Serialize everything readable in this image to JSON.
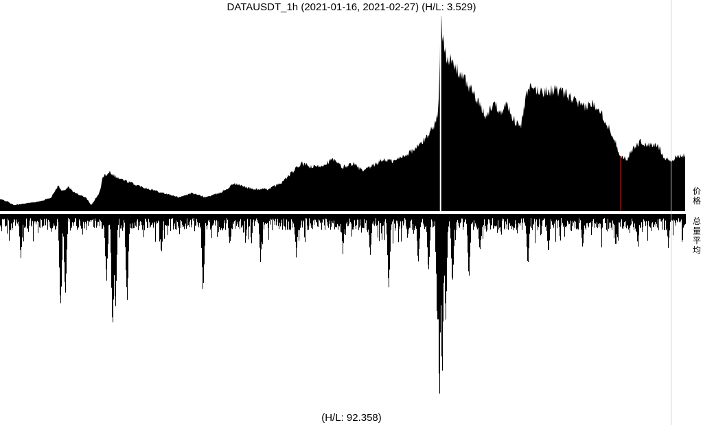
{
  "chart": {
    "title": "DATAUSDT_1h (2021-01-16, 2021-02-27) (H/L: 3.529)",
    "volume_ratio_label": "(H/L: 92.358)",
    "price_panel_label": "价格",
    "volume_panel_label": "总量平均"
  },
  "chart_data": [
    {
      "type": "area",
      "panel": "price",
      "symbol": "DATAUSDT",
      "interval": "1h",
      "date_range": [
        "2021-01-16",
        "2021-02-27"
      ],
      "high_low_ratio": 3.529,
      "fill_color": "#000000",
      "highlight_color": "#cc0000",
      "x_range": [
        0,
        1
      ],
      "y_range": [
        0,
        1
      ],
      "profile": [
        [
          0.0,
          0.06
        ],
        [
          0.01,
          0.05
        ],
        [
          0.02,
          0.03
        ],
        [
          0.04,
          0.04
        ],
        [
          0.06,
          0.05
        ],
        [
          0.075,
          0.07
        ],
        [
          0.085,
          0.13
        ],
        [
          0.09,
          0.1
        ],
        [
          0.1,
          0.12
        ],
        [
          0.11,
          0.09
        ],
        [
          0.125,
          0.07
        ],
        [
          0.133,
          0.03
        ],
        [
          0.145,
          0.09
        ],
        [
          0.15,
          0.17
        ],
        [
          0.16,
          0.2
        ],
        [
          0.17,
          0.17
        ],
        [
          0.185,
          0.15
        ],
        [
          0.2,
          0.13
        ],
        [
          0.22,
          0.11
        ],
        [
          0.24,
          0.09
        ],
        [
          0.26,
          0.07
        ],
        [
          0.28,
          0.09
        ],
        [
          0.3,
          0.07
        ],
        [
          0.32,
          0.09
        ],
        [
          0.335,
          0.12
        ],
        [
          0.34,
          0.14
        ],
        [
          0.35,
          0.13
        ],
        [
          0.37,
          0.11
        ],
        [
          0.39,
          0.11
        ],
        [
          0.41,
          0.14
        ],
        [
          0.425,
          0.19
        ],
        [
          0.44,
          0.24
        ],
        [
          0.455,
          0.22
        ],
        [
          0.47,
          0.23
        ],
        [
          0.485,
          0.26
        ],
        [
          0.5,
          0.22
        ],
        [
          0.515,
          0.24
        ],
        [
          0.53,
          0.2
        ],
        [
          0.545,
          0.23
        ],
        [
          0.56,
          0.26
        ],
        [
          0.575,
          0.25
        ],
        [
          0.59,
          0.28
        ],
        [
          0.605,
          0.31
        ],
        [
          0.62,
          0.36
        ],
        [
          0.635,
          0.44
        ],
        [
          0.64,
          0.5
        ],
        [
          0.643,
          0.97
        ],
        [
          0.646,
          0.9
        ],
        [
          0.652,
          0.78
        ],
        [
          0.66,
          0.74
        ],
        [
          0.67,
          0.7
        ],
        [
          0.68,
          0.65
        ],
        [
          0.69,
          0.6
        ],
        [
          0.7,
          0.53
        ],
        [
          0.71,
          0.47
        ],
        [
          0.72,
          0.55
        ],
        [
          0.73,
          0.5
        ],
        [
          0.74,
          0.54
        ],
        [
          0.75,
          0.46
        ],
        [
          0.76,
          0.42
        ],
        [
          0.768,
          0.58
        ],
        [
          0.775,
          0.62
        ],
        [
          0.79,
          0.6
        ],
        [
          0.81,
          0.61
        ],
        [
          0.83,
          0.58
        ],
        [
          0.84,
          0.55
        ],
        [
          0.85,
          0.52
        ],
        [
          0.865,
          0.54
        ],
        [
          0.875,
          0.52
        ],
        [
          0.885,
          0.44
        ],
        [
          0.895,
          0.38
        ],
        [
          0.905,
          0.28
        ],
        [
          0.915,
          0.26
        ],
        [
          0.925,
          0.32
        ],
        [
          0.935,
          0.35
        ],
        [
          0.945,
          0.33
        ],
        [
          0.96,
          0.33
        ],
        [
          0.97,
          0.27
        ],
        [
          0.98,
          0.25
        ],
        [
          0.99,
          0.28
        ],
        [
          0.998,
          0.28
        ],
        [
          1.0,
          0.28
        ]
      ],
      "highlights": [
        [
          0.643,
          "#ffffff"
        ],
        [
          0.906,
          "#cc0000"
        ]
      ]
    },
    {
      "type": "bar",
      "panel": "volume",
      "high_low_ratio": 92.358,
      "fill_color": "#000000",
      "x_range": [
        0,
        1
      ],
      "y_range": [
        0,
        1
      ],
      "baseline": 0.05,
      "spikes": [
        [
          0.03,
          0.25
        ],
        [
          0.088,
          0.52
        ],
        [
          0.095,
          0.43
        ],
        [
          0.155,
          0.38
        ],
        [
          0.164,
          0.67
        ],
        [
          0.168,
          0.53
        ],
        [
          0.185,
          0.48
        ],
        [
          0.235,
          0.22
        ],
        [
          0.296,
          0.46
        ],
        [
          0.335,
          0.18
        ],
        [
          0.38,
          0.25
        ],
        [
          0.432,
          0.22
        ],
        [
          0.5,
          0.2
        ],
        [
          0.54,
          0.22
        ],
        [
          0.567,
          0.4
        ],
        [
          0.61,
          0.27
        ],
        [
          0.625,
          0.32
        ],
        [
          0.638,
          0.6
        ],
        [
          0.641,
          1.0
        ],
        [
          0.645,
          0.85
        ],
        [
          0.65,
          0.58
        ],
        [
          0.66,
          0.4
        ],
        [
          0.684,
          0.35
        ],
        [
          0.7,
          0.22
        ],
        [
          0.77,
          0.29
        ],
        [
          0.8,
          0.22
        ],
        [
          0.85,
          0.18
        ],
        [
          0.9,
          0.16
        ],
        [
          0.93,
          0.14
        ],
        [
          0.975,
          0.17
        ]
      ]
    }
  ]
}
